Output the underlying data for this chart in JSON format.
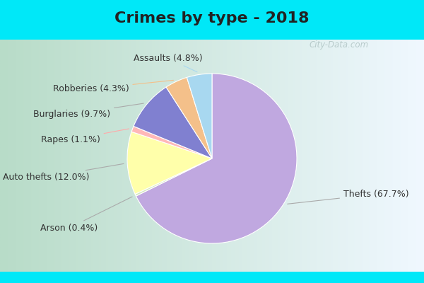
{
  "title": "Crimes by type - 2018",
  "plot_labels": [
    "Thefts",
    "Arson",
    "Auto thefts",
    "Rapes",
    "Burglaries",
    "Robberies",
    "Assaults"
  ],
  "plot_values": [
    67.7,
    0.4,
    12.0,
    1.1,
    9.7,
    4.3,
    4.8
  ],
  "plot_colors": [
    "#c0a8e0",
    "#d4e8c0",
    "#ffffaa",
    "#ffb8b8",
    "#8080d0",
    "#f4c08a",
    "#a8d8f0"
  ],
  "title_fontsize": 16,
  "bg_cyan": "#00e8f8",
  "bg_green_left": "#a8d8b8",
  "bg_white_right": "#f0f8ff",
  "label_fontsize": 9,
  "watermark": "City-Data.com",
  "label_names": [
    "Thefts (67.7%)",
    "Arson (0.4%)",
    "Auto thefts (12.0%)",
    "Rapes (1.1%)",
    "Burglaries (9.7%)",
    "Robberies (4.3%)",
    "Assaults (4.8%)"
  ]
}
